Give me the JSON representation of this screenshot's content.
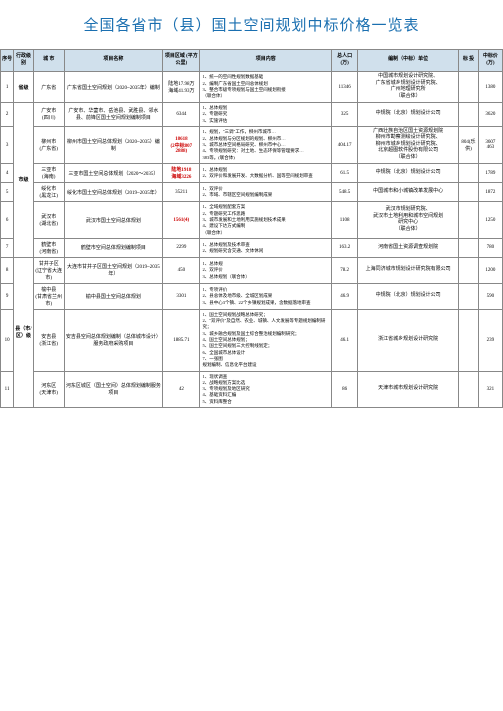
{
  "title": "全国各省市（县）国土空间规划中标价格一览表",
  "headers": {
    "seq": "序号",
    "level": "行政级别",
    "city": "城 市",
    "project": "项目名称",
    "area": "项目区域\n(平方公里)",
    "content": "项目内容",
    "pop": "总人口\n(万)",
    "unit": "编制（中标）单位",
    "bid": "标 投",
    "price": "中标价\n(万)"
  },
  "rows": [
    {
      "seq": "1",
      "level": "省级",
      "levelRowspan": 1,
      "city": "广东省",
      "project": "广东省国土空间规划（2020~2035年）编制",
      "area": "陆地17.98万\n海域41.93万",
      "content": "1、统一的空间性规划数据基础\n2、编制广东省国土空间总体规划\n3、整合市级专项规划与国土空间规划衔接\n（联合体）",
      "pop": "11346",
      "unit": "中国城市规划设计研究院、\n广东省城乡规划设计研究院、\n广州地理研究所\n（联合体）",
      "bid": "",
      "price": "1380"
    },
    {
      "seq": "2",
      "level": "市级",
      "levelRowspan": 6,
      "city": "广安市\n(四川)",
      "project": "广安市、华蓥市、岳池县、武胜县、邻水县、前锋区国土空间规划编制项目",
      "area": "6344",
      "content": "1、总体规划\n2、专题研究\n3、实施评估",
      "pop": "325",
      "unit": "中规院（北京）规划设计公司",
      "bid": "",
      "price": "3620"
    },
    {
      "seq": "3",
      "city": "柳州市\n(广东省)",
      "project": "柳州市国土空间总体规划（2020~2035）编制",
      "area": "18618\n(2中标807\n2888)",
      "areaClass": "highlight",
      "content": "1、规划，\"三调\"工作，柳州市城市…\n2、总体规划与分区规划的规划、柳州市…\n3、城市总体空间格局研究、柳州市中心…\n4、专项规划研究：对土地、生态环保等管理要求…\n383等。(联合体)",
      "pop": "404.17",
      "unit": "广西壮族自治区国土资源规划院\n柳州市勘察测绘设计研究院、\n柳州市城乡规划设计研究院、\n北京超图软件股份有限公司\n（联合体）",
      "bid": "804(乐供)",
      "price": "3607",
      "price2": "463"
    },
    {
      "seq": "4",
      "city": "三亚市\n(海南)",
      "project": "三亚市国土空间总体规划（2020～2035）",
      "area": "陆地1918\n海域3226",
      "areaClass": "highlight",
      "content": "1、总体规划\n2、双评价和发展开发、大数据分析、国等空间规划审查",
      "pop": "61.5",
      "unit": "中规院（北京）规划设计公司",
      "bid": "",
      "price": "1789"
    },
    {
      "seq": "5",
      "city": "绥化市\n(黑龙江)",
      "project": "绥化市国土空间总体规划（2019~2035年）",
      "area": "35211",
      "content": "1、双评价\n2、市域、市辖区空间规划编制成果",
      "pop": "548.5",
      "unit": "中国城市和小城镇改革发展中心",
      "bid": "",
      "price": "1872"
    },
    {
      "seq": "6",
      "city": "武汉市\n(湖北省)",
      "project": "武汉市国土空间总体规划",
      "area": "1561(4)",
      "areaClass": "highlight",
      "content": "1、全域规划配套方案\n2、专题研究工作思路\n3、城市发展和土地利用实施规划技术成果\n4、建设下达方式编制\n（联合体）",
      "pop": "1108",
      "unit": "武汉市规划研究院、\n武汉市土地利用和城市空间规划\n研究中心\n（联合体）",
      "bid": "",
      "price": "1250"
    },
    {
      "seq": "7",
      "city": "鹤壁市\n(河南省)",
      "project": "鹤壁市空间总体规划编制项目",
      "area": "2299",
      "content": "1、总体规划及技术审查\n2、规划研究含交通、文体休闲",
      "pop": "163.2",
      "unit": "河南省国土资源调查规划院",
      "bid": "",
      "price": "780"
    },
    {
      "seq": "8",
      "level": "县（市/区）级",
      "levelRowspan": 4,
      "city": "甘井子区\n(辽宁省大连市)",
      "project": "大连市甘井子区国土空间规划（2019~2035年）",
      "area": "450",
      "content": "1、总体规\n2、双评价\n3、总体规划（联合体）",
      "pop": "78.2",
      "unit": "上海同济城市规划设计研究院有限公司",
      "bid": "",
      "price": "1200"
    },
    {
      "seq": "9",
      "city": "榆中县\n(甘肃省兰州市)",
      "project": "榆中县国土空间总体规划",
      "area": "3301",
      "content": "1、专项评价\n2、县总体及地市级、全城区划成果\n3、县中心3个镇、22个乡镇规划成果，含数据落地审查",
      "pop": "46.9",
      "unit": "中规院（北京）规划设计公司",
      "bid": "",
      "price": "590"
    },
    {
      "seq": "10",
      "city": "安吉县\n(浙江省)",
      "project": "安吉县空间总体规划编制（总体城市设计）服务政府采购项目",
      "area": "1885.71",
      "content": "1、国土空间规划战略总体研究；\n2、\"双评价\"及自然、农业、城镇、人文发展等专题规划编制研究；\n3、城乡融合规划及国土综合整治规划编制研究；\n4、国土空间总体规划；\n5、国土空间规划三大控制线划定；\n6、全国城市总体设计\n7、一张图\n规划编制、信息化平台建设",
      "pop": "46.1",
      "unit": "浙江省城乡规划设计研究院",
      "bid": "",
      "price": "239"
    },
    {
      "seq": "11",
      "city": "河东区\n(天津市)",
      "project": "河东区城区（国土空间）总体规划编制服务项目",
      "area": "42",
      "content": "1、现状调查\n2、战略规划方案比选\n3、专项规划及地区研究\n4、基础资料汇编\n5、资料库整合",
      "pop": "86",
      "unit": "天津市城市规划设计研究院",
      "bid": "",
      "price": "321"
    }
  ]
}
